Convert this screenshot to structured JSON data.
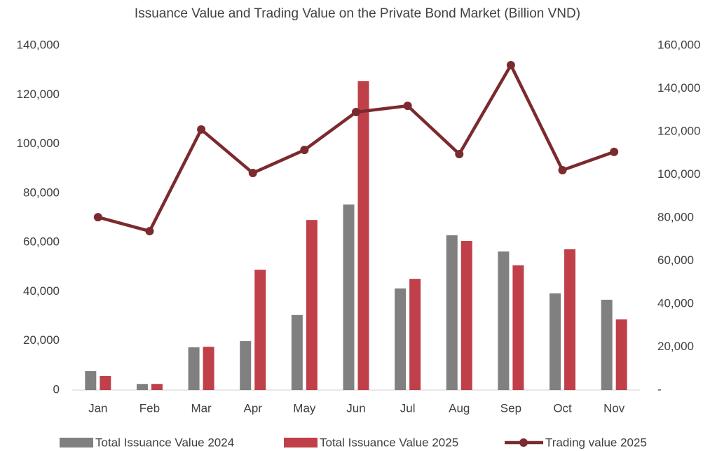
{
  "chart_data": {
    "type": "bar-line",
    "title": "Issuance Value and Trading Value on the Private Bond Market (Billion VND)",
    "categories": [
      "Jan",
      "Feb",
      "Mar",
      "Apr",
      "May",
      "Jun",
      "Jul",
      "Aug",
      "Sep",
      "Oct",
      "Nov"
    ],
    "series": [
      {
        "name": "Total Issuance Value 2024",
        "type": "bar",
        "color": "#808080",
        "values": [
          7700,
          2500,
          17400,
          19900,
          30500,
          75400,
          41300,
          62900,
          56300,
          39300,
          36700
        ]
      },
      {
        "name": "Total Issuance Value 2025",
        "type": "bar",
        "color": "#c0404a",
        "values": [
          5700,
          2500,
          17600,
          48900,
          69100,
          125500,
          45200,
          60600,
          50700,
          57200,
          28700
        ]
      },
      {
        "name": "Trading value 2025",
        "type": "line",
        "color": "#7b2a2e",
        "axis": "y2",
        "values": [
          80300,
          73800,
          121000,
          100800,
          111500,
          129100,
          132000,
          109600,
          150900,
          102100,
          110600
        ]
      }
    ],
    "ylim": [
      0,
      140000
    ],
    "yticks": [
      0,
      {
        "value": 20000,
        "label": "20,000"
      },
      {
        "value": 40000,
        "label": "40,000"
      },
      {
        "value": 60000,
        "label": "60,000"
      },
      {
        "value": 80000,
        "label": "80,000"
      },
      {
        "value": 100000,
        "label": "100,000"
      },
      {
        "value": 120000,
        "label": "120,000"
      },
      {
        "value": 140000,
        "label": "140,000"
      }
    ],
    "y2lim": [
      0,
      160000
    ],
    "y2ticks": [
      {
        "value": 0,
        "label": "-"
      },
      {
        "value": 20000,
        "label": "20,000"
      },
      {
        "value": 40000,
        "label": "40,000"
      },
      {
        "value": 60000,
        "label": "60,000"
      },
      {
        "value": 80000,
        "label": "80,000"
      },
      {
        "value": 100000,
        "label": "100,000"
      },
      {
        "value": 120000,
        "label": "120,000"
      },
      {
        "value": 140000,
        "label": "140,000"
      },
      {
        "value": 160000,
        "label": "160,000"
      }
    ],
    "legend": "bottom",
    "grid": false
  }
}
